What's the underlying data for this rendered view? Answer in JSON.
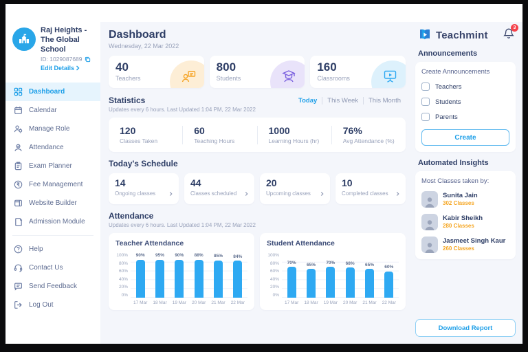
{
  "school": {
    "name": "Raj Heights - The Global School",
    "id": "ID: 1029087689",
    "edit": "Edit Details"
  },
  "sidebar": {
    "items": [
      {
        "label": "Dashboard"
      },
      {
        "label": "Calendar"
      },
      {
        "label": "Manage Role"
      },
      {
        "label": "Attendance"
      },
      {
        "label": "Exam Planner"
      },
      {
        "label": "Fee Management"
      },
      {
        "label": "Website Builder"
      },
      {
        "label": "Admission Module"
      }
    ],
    "footer": [
      {
        "label": "Help"
      },
      {
        "label": "Contact Us"
      },
      {
        "label": "Send Feedback"
      },
      {
        "label": "Log Out"
      }
    ]
  },
  "header": {
    "title": "Dashboard",
    "date": "Wednesday, 22 Mar 2022"
  },
  "summary": [
    {
      "value": "40",
      "label": "Teachers"
    },
    {
      "value": "800",
      "label": "Students"
    },
    {
      "value": "160",
      "label": "Classrooms"
    }
  ],
  "statistics": {
    "title": "Statistics",
    "subtitle": "Updates every 6 hours. Last Updated 1:04 PM, 22 Mar 2022",
    "tabs": [
      {
        "label": "Today"
      },
      {
        "label": "This Week"
      },
      {
        "label": "This Month"
      }
    ],
    "stats": [
      {
        "value": "120",
        "label": "Classes Taken"
      },
      {
        "value": "60",
        "label": "Teaching Hours"
      },
      {
        "value": "1000",
        "label": "Learning Hours (hr)"
      },
      {
        "value": "76%",
        "label": "Avg Attendance (%)"
      }
    ]
  },
  "schedule": {
    "title": "Today's Schedule",
    "cards": [
      {
        "value": "14",
        "label": "Ongoing classes"
      },
      {
        "value": "44",
        "label": "Classes scheduled"
      },
      {
        "value": "20",
        "label": "Upcoming classes"
      },
      {
        "value": "10",
        "label": "Completed classes"
      }
    ]
  },
  "attendance": {
    "title": "Attendance",
    "subtitle": "Updates every 6 hours. Last Updated 1:04 PM, 22 Mar 2022"
  },
  "chart_data": [
    {
      "type": "bar",
      "title": "Teacher Attendance",
      "categories": [
        "17 Mar",
        "18 Mar",
        "19 Mar",
        "20 Mar",
        "21 Mar",
        "22 Mar"
      ],
      "values": [
        90,
        95,
        90,
        88,
        85,
        84
      ],
      "value_labels": [
        "90%",
        "95%",
        "90%",
        "88%",
        "85%",
        "84%"
      ],
      "ylim": [
        0,
        100
      ],
      "ytick_labels": [
        "100%",
        "80%",
        "60%",
        "40%",
        "20%",
        "0%"
      ],
      "bar_color": "#2ea9f2",
      "grid": true
    },
    {
      "type": "bar",
      "title": "Student Attendance",
      "categories": [
        "17 Mar",
        "18 Mar",
        "19 Mar",
        "20 Mar",
        "21 Mar",
        "22 Mar"
      ],
      "values": [
        70,
        65,
        70,
        68,
        65,
        60
      ],
      "value_labels": [
        "70%",
        "65%",
        "70%",
        "68%",
        "65%",
        "60%"
      ],
      "ylim": [
        0,
        100
      ],
      "ytick_labels": [
        "100%",
        "80%",
        "60%",
        "40%",
        "20%",
        "0%"
      ],
      "bar_color": "#2ea9f2",
      "grid": true
    }
  ],
  "brand": {
    "name": "Teachmint",
    "notification_count": "3"
  },
  "announcements": {
    "title": "Announcements",
    "panel_title": "Create Announcements",
    "options": [
      "Teachers",
      "Students",
      "Parents"
    ],
    "create_label": "Create"
  },
  "insights": {
    "title": "Automated Insights",
    "panel_title": "Most Classes taken by:",
    "people": [
      {
        "name": "Sunita Jain",
        "classes": "302 Classes"
      },
      {
        "name": "Kabir Sheikh",
        "classes": "280 Classes"
      },
      {
        "name": "Jasmeet Singh Kaur",
        "classes": "260 Classes"
      }
    ]
  },
  "download_label": "Download Report",
  "colors": {
    "accent": "#1e9fe8",
    "bar": "#2ea9f2",
    "orange": "#f5a623",
    "purple": "#7b61df",
    "navy": "#2e3e66",
    "badge": "#f4434b"
  }
}
